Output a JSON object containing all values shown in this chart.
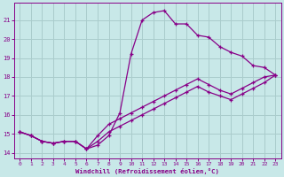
{
  "xlabel": "Windchill (Refroidissement éolien,°C)",
  "background_color": "#c8e8e8",
  "grid_color": "#aacccc",
  "line_color": "#880088",
  "xlim": [
    -0.5,
    23.5
  ],
  "ylim": [
    13.7,
    21.9
  ],
  "yticks": [
    14,
    15,
    16,
    17,
    18,
    19,
    20,
    21
  ],
  "xticks": [
    0,
    1,
    2,
    3,
    4,
    5,
    6,
    7,
    8,
    9,
    10,
    11,
    12,
    13,
    14,
    15,
    16,
    17,
    18,
    19,
    20,
    21,
    22,
    23
  ],
  "series1_x": [
    0,
    1,
    2,
    3,
    4,
    5,
    6,
    7,
    8,
    9,
    10,
    11,
    12,
    13,
    14,
    15,
    16,
    17,
    18,
    19,
    20,
    21,
    22,
    23
  ],
  "series1_y": [
    15.1,
    14.9,
    14.6,
    14.5,
    14.6,
    14.6,
    14.2,
    14.4,
    14.9,
    16.1,
    19.2,
    21.0,
    21.4,
    21.5,
    20.8,
    20.8,
    20.2,
    20.1,
    19.6,
    19.3,
    19.1,
    18.6,
    18.5,
    18.1
  ],
  "series2_x": [
    0,
    1,
    2,
    3,
    4,
    5,
    6,
    7,
    8,
    9,
    10,
    11,
    12,
    13,
    14,
    15,
    16,
    17,
    18,
    19,
    20,
    21,
    22,
    23
  ],
  "series2_y": [
    15.1,
    14.9,
    14.6,
    14.5,
    14.6,
    14.6,
    14.2,
    14.9,
    15.5,
    15.8,
    16.1,
    16.4,
    16.7,
    17.0,
    17.3,
    17.6,
    17.9,
    17.6,
    17.3,
    17.1,
    17.4,
    17.7,
    18.0,
    18.1
  ],
  "series3_x": [
    0,
    1,
    2,
    3,
    4,
    5,
    6,
    7,
    8,
    9,
    10,
    11,
    12,
    13,
    14,
    15,
    16,
    17,
    18,
    19,
    20,
    21,
    22,
    23
  ],
  "series3_y": [
    15.1,
    14.9,
    14.6,
    14.5,
    14.6,
    14.6,
    14.2,
    14.6,
    15.1,
    15.4,
    15.7,
    16.0,
    16.3,
    16.6,
    16.9,
    17.2,
    17.5,
    17.2,
    17.0,
    16.8,
    17.1,
    17.4,
    17.7,
    18.1
  ]
}
